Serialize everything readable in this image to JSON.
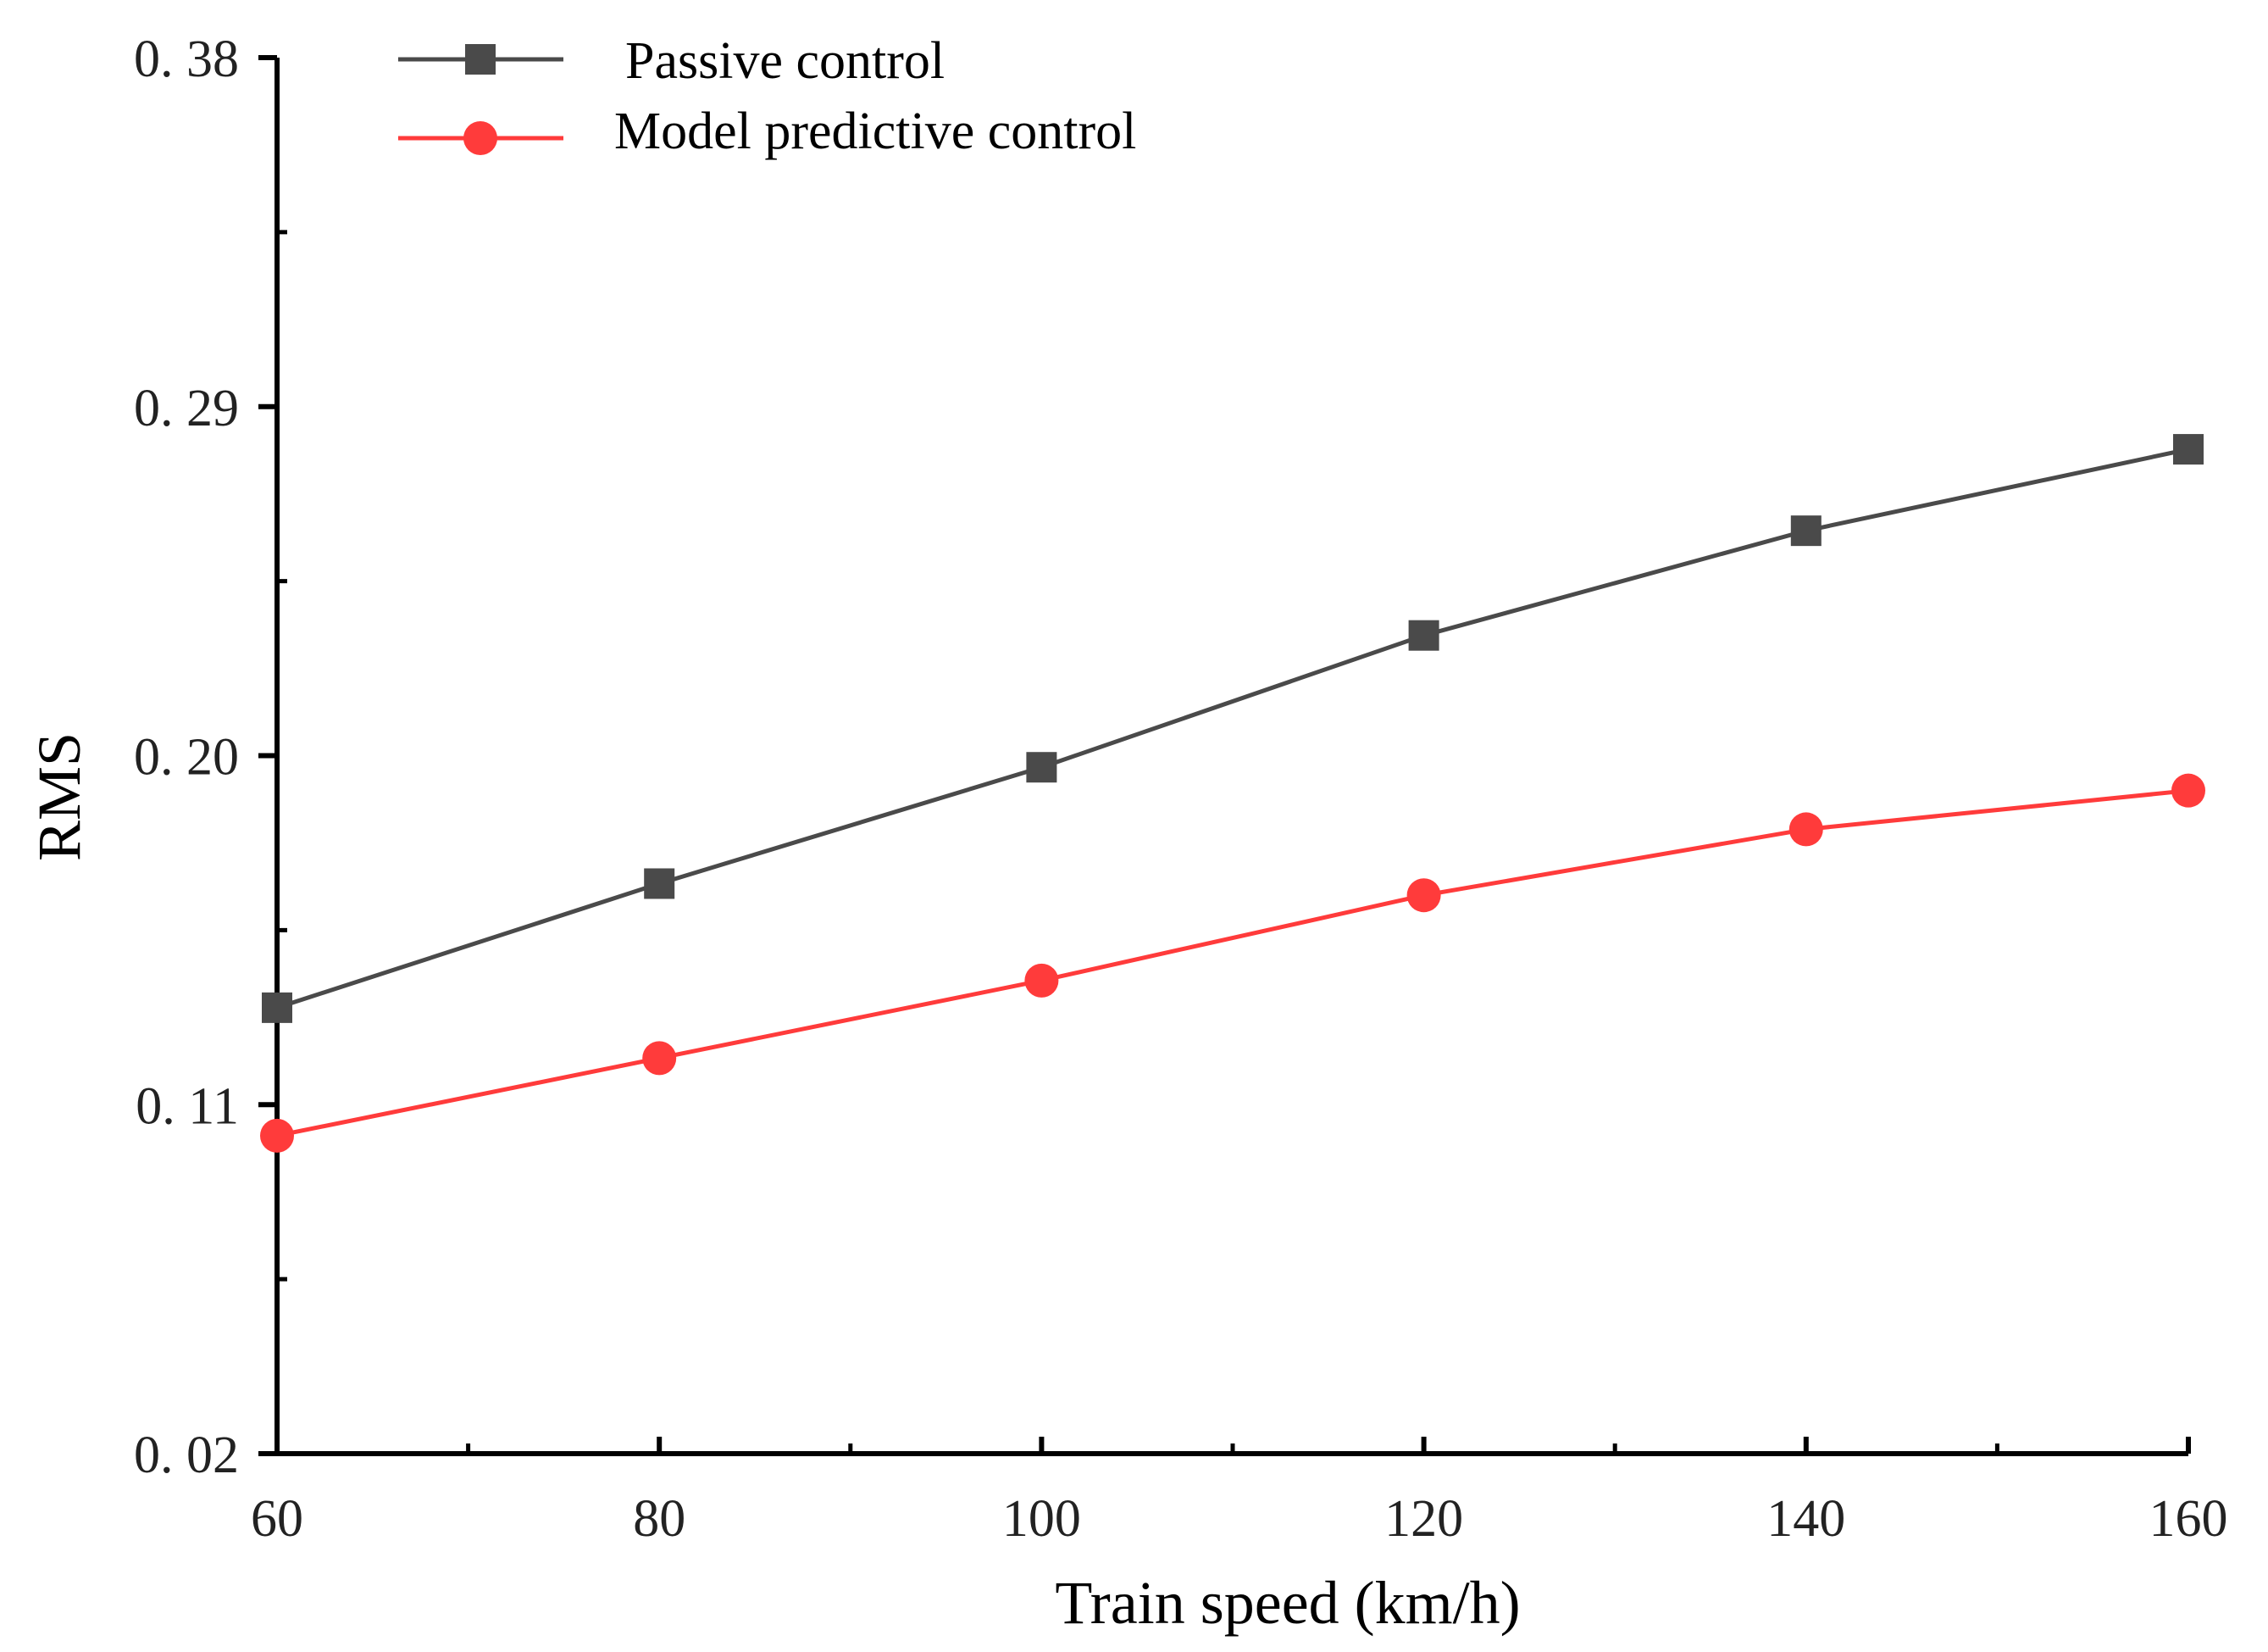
{
  "chart_data": {
    "type": "line",
    "title": "",
    "xlabel": "Train  speed  (km/h)",
    "ylabel": "RMS",
    "xlim": [
      60,
      160
    ],
    "ylim": [
      0.02,
      0.38
    ],
    "x_ticks": [
      60,
      80,
      100,
      120,
      140,
      160
    ],
    "x_tick_labels": [
      "60",
      "80",
      "100",
      "120",
      "140",
      "160"
    ],
    "y_ticks": [
      0.02,
      0.11,
      0.2,
      0.29,
      0.38
    ],
    "y_tick_labels": [
      "0. 02",
      "0. 11",
      "0. 20",
      "0. 29",
      "0. 38"
    ],
    "grid": false,
    "legend_position": "top-left",
    "x": [
      60,
      80,
      100,
      120,
      140,
      160
    ],
    "series": [
      {
        "name": "Passive control",
        "color": "#4a4a4a",
        "marker": "square",
        "values": [
          0.135,
          0.167,
          0.197,
          0.231,
          0.258,
          0.279
        ]
      },
      {
        "name": "Model predictive control",
        "color": "#ff3b3b",
        "marker": "circle",
        "values": [
          0.102,
          0.122,
          0.142,
          0.164,
          0.181,
          0.191
        ]
      }
    ]
  }
}
